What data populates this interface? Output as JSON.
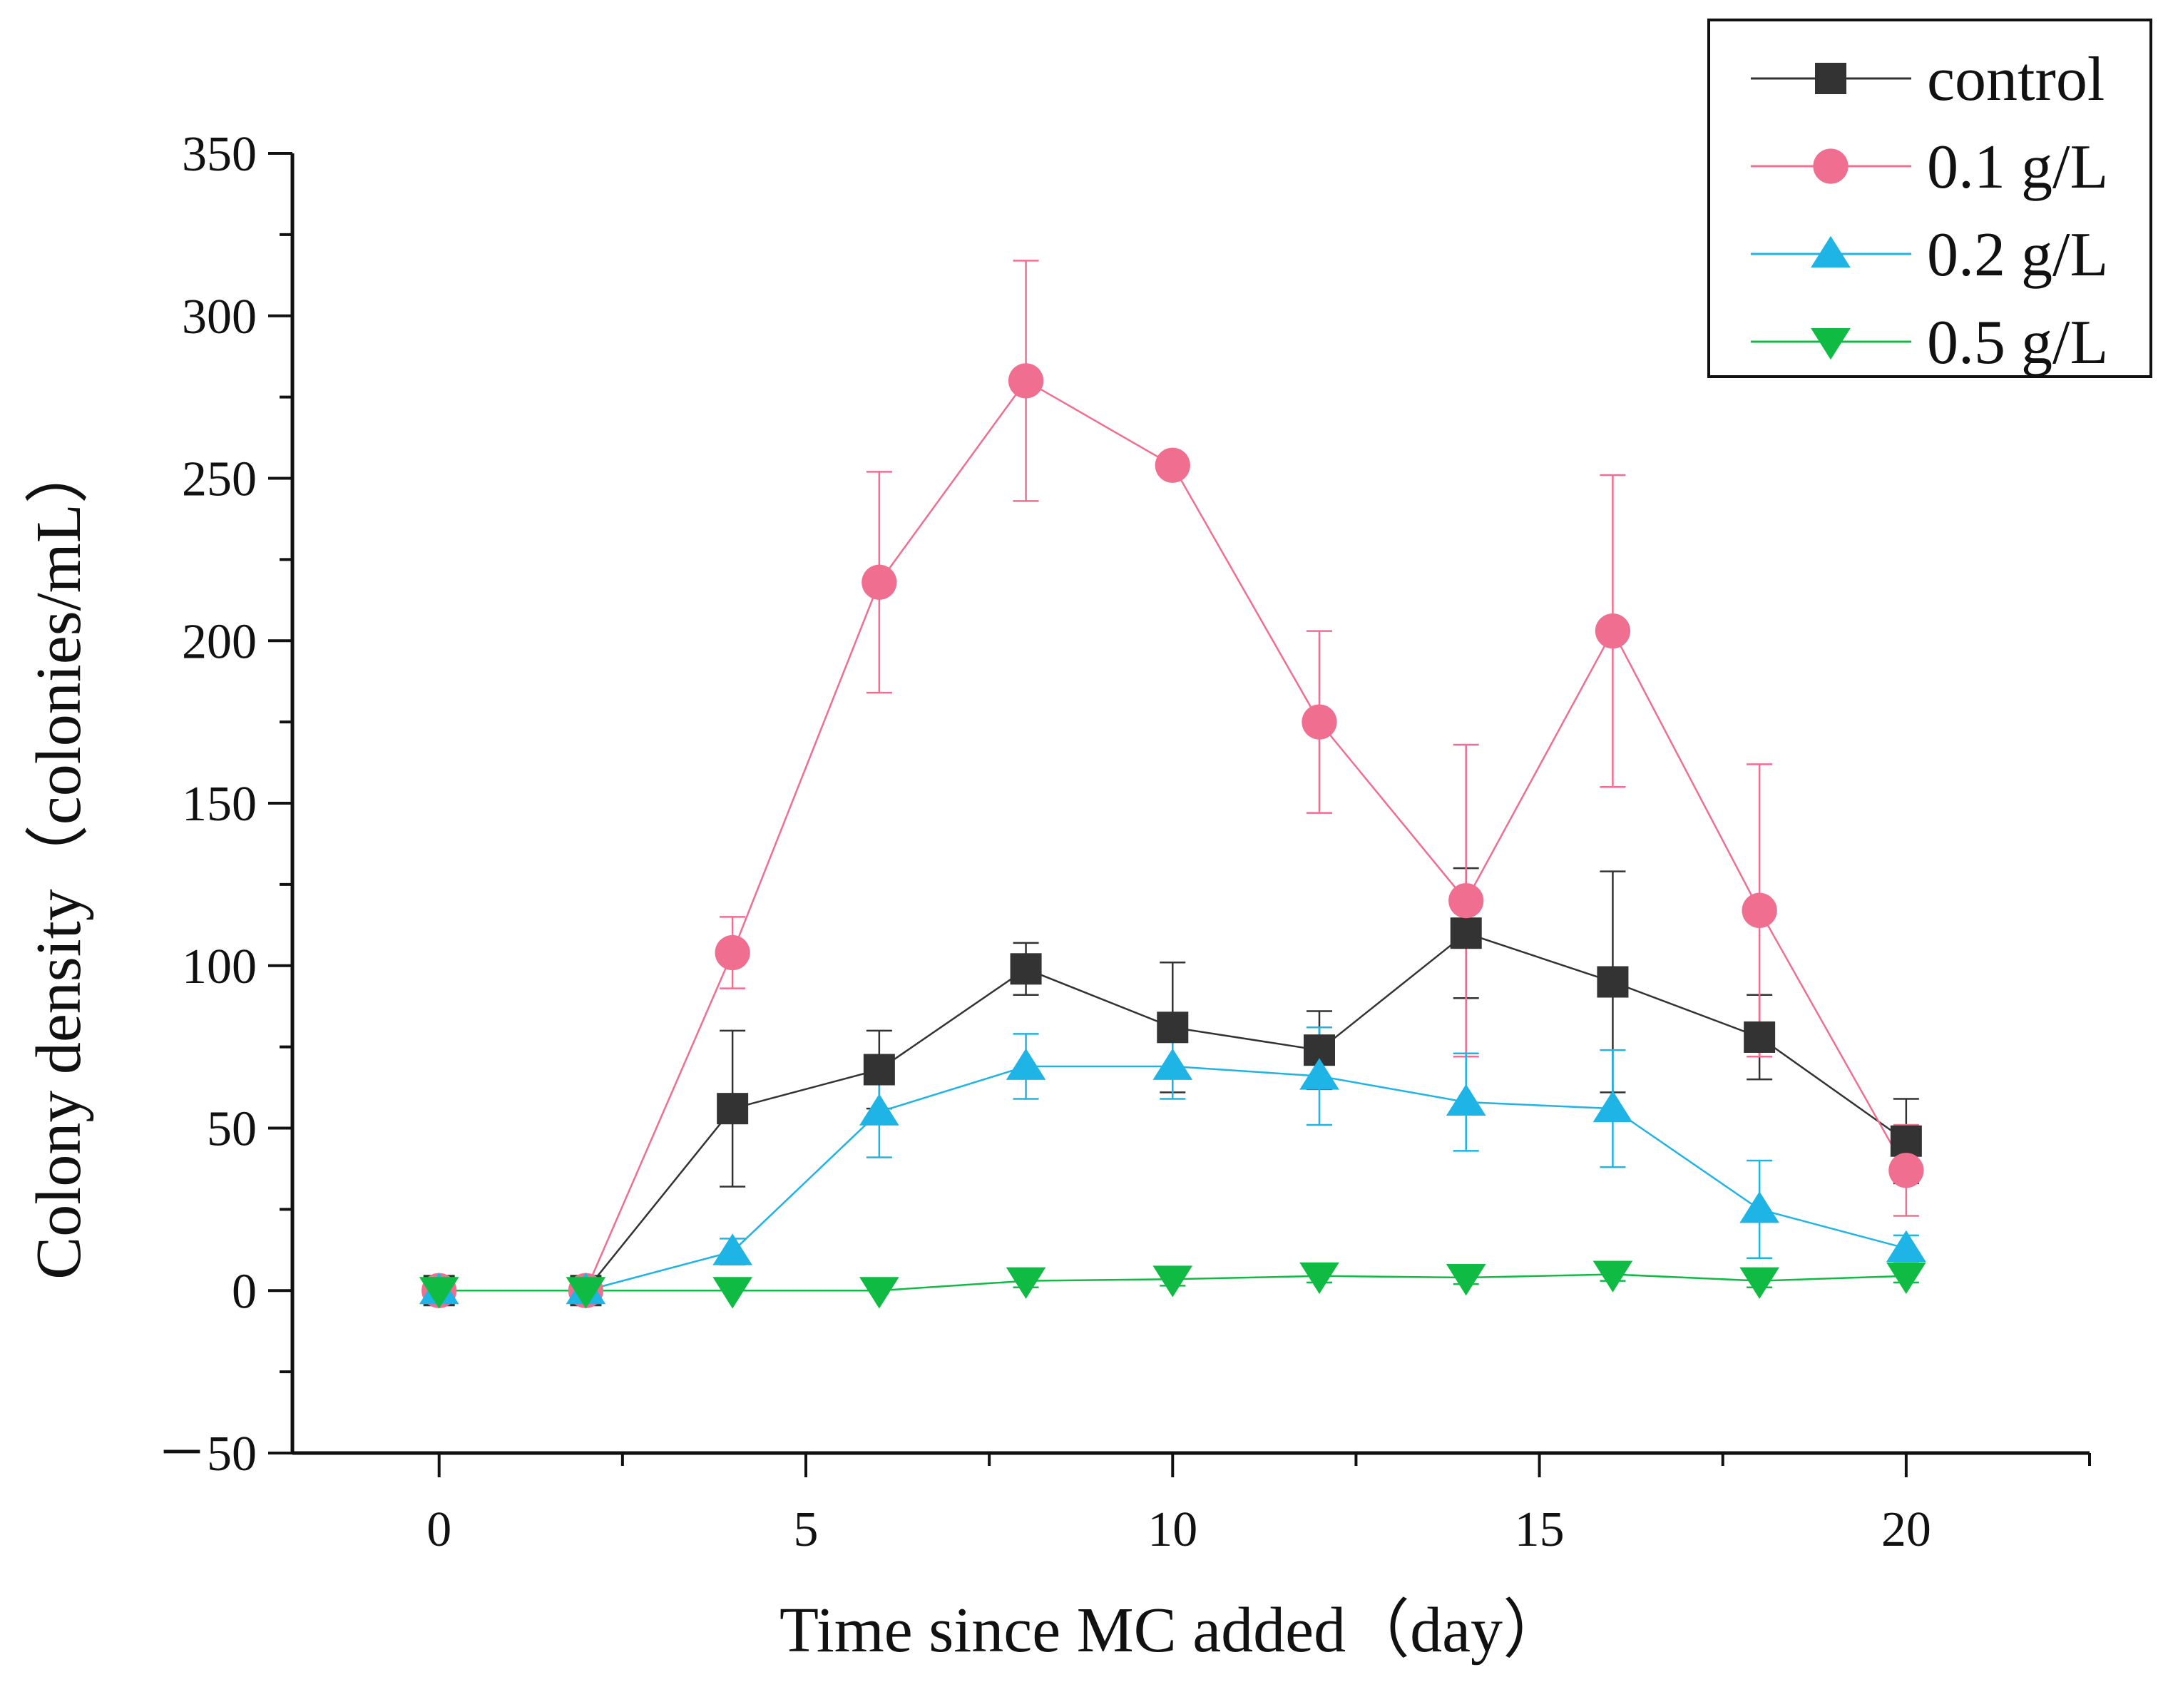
{
  "chart_data": {
    "type": "line",
    "xlabel": "Time since MC added（day）",
    "ylabel": "Colony density（colonies/mL）",
    "xlim": [
      -2,
      22.5
    ],
    "ylim": [
      -50,
      350
    ],
    "xticks": [
      0,
      5,
      10,
      15,
      20
    ],
    "xtick_labels": [
      "0",
      "5",
      "10",
      "15",
      "20"
    ],
    "yticks": [
      -50,
      0,
      50,
      100,
      150,
      200,
      250,
      300,
      350
    ],
    "ytick_labels": [
      "－50",
      "0",
      "50",
      "100",
      "150",
      "200",
      "250",
      "300",
      "350"
    ],
    "grid": false,
    "legend_position": "top-right",
    "x": [
      0,
      2,
      4,
      6,
      8,
      10,
      12,
      14,
      16,
      18,
      20
    ],
    "series": [
      {
        "name": "control",
        "color": "#333333",
        "marker": "square",
        "values": [
          0,
          0,
          56,
          68,
          99,
          81,
          74,
          110,
          95,
          78,
          46
        ],
        "error": [
          0,
          0,
          24,
          12,
          8,
          20,
          12,
          20,
          34,
          13,
          13
        ]
      },
      {
        "name": "0.1 g/L",
        "color": "#f06e90",
        "marker": "circle",
        "values": [
          0,
          0,
          104,
          218,
          280,
          254,
          175,
          120,
          203,
          117,
          37
        ],
        "error": [
          0,
          0,
          11,
          34,
          37,
          0,
          28,
          48,
          48,
          45,
          14
        ]
      },
      {
        "name": "0.2 g/L",
        "color": "#1eb4e6",
        "marker": "triangle-up",
        "values": [
          0,
          0,
          12,
          55,
          69,
          69,
          66,
          58,
          56,
          25,
          13
        ],
        "error": [
          0,
          0,
          4,
          14,
          10,
          10,
          15,
          15,
          18,
          15,
          4
        ]
      },
      {
        "name": "0.5 g/L",
        "color": "#10bb44",
        "marker": "triangle-down",
        "values": [
          0,
          0,
          0,
          0,
          3,
          3.5,
          4.5,
          4,
          5,
          3,
          4.5
        ],
        "error": [
          0,
          0,
          0,
          0,
          2,
          2,
          2,
          2,
          2,
          2,
          2
        ]
      }
    ]
  }
}
